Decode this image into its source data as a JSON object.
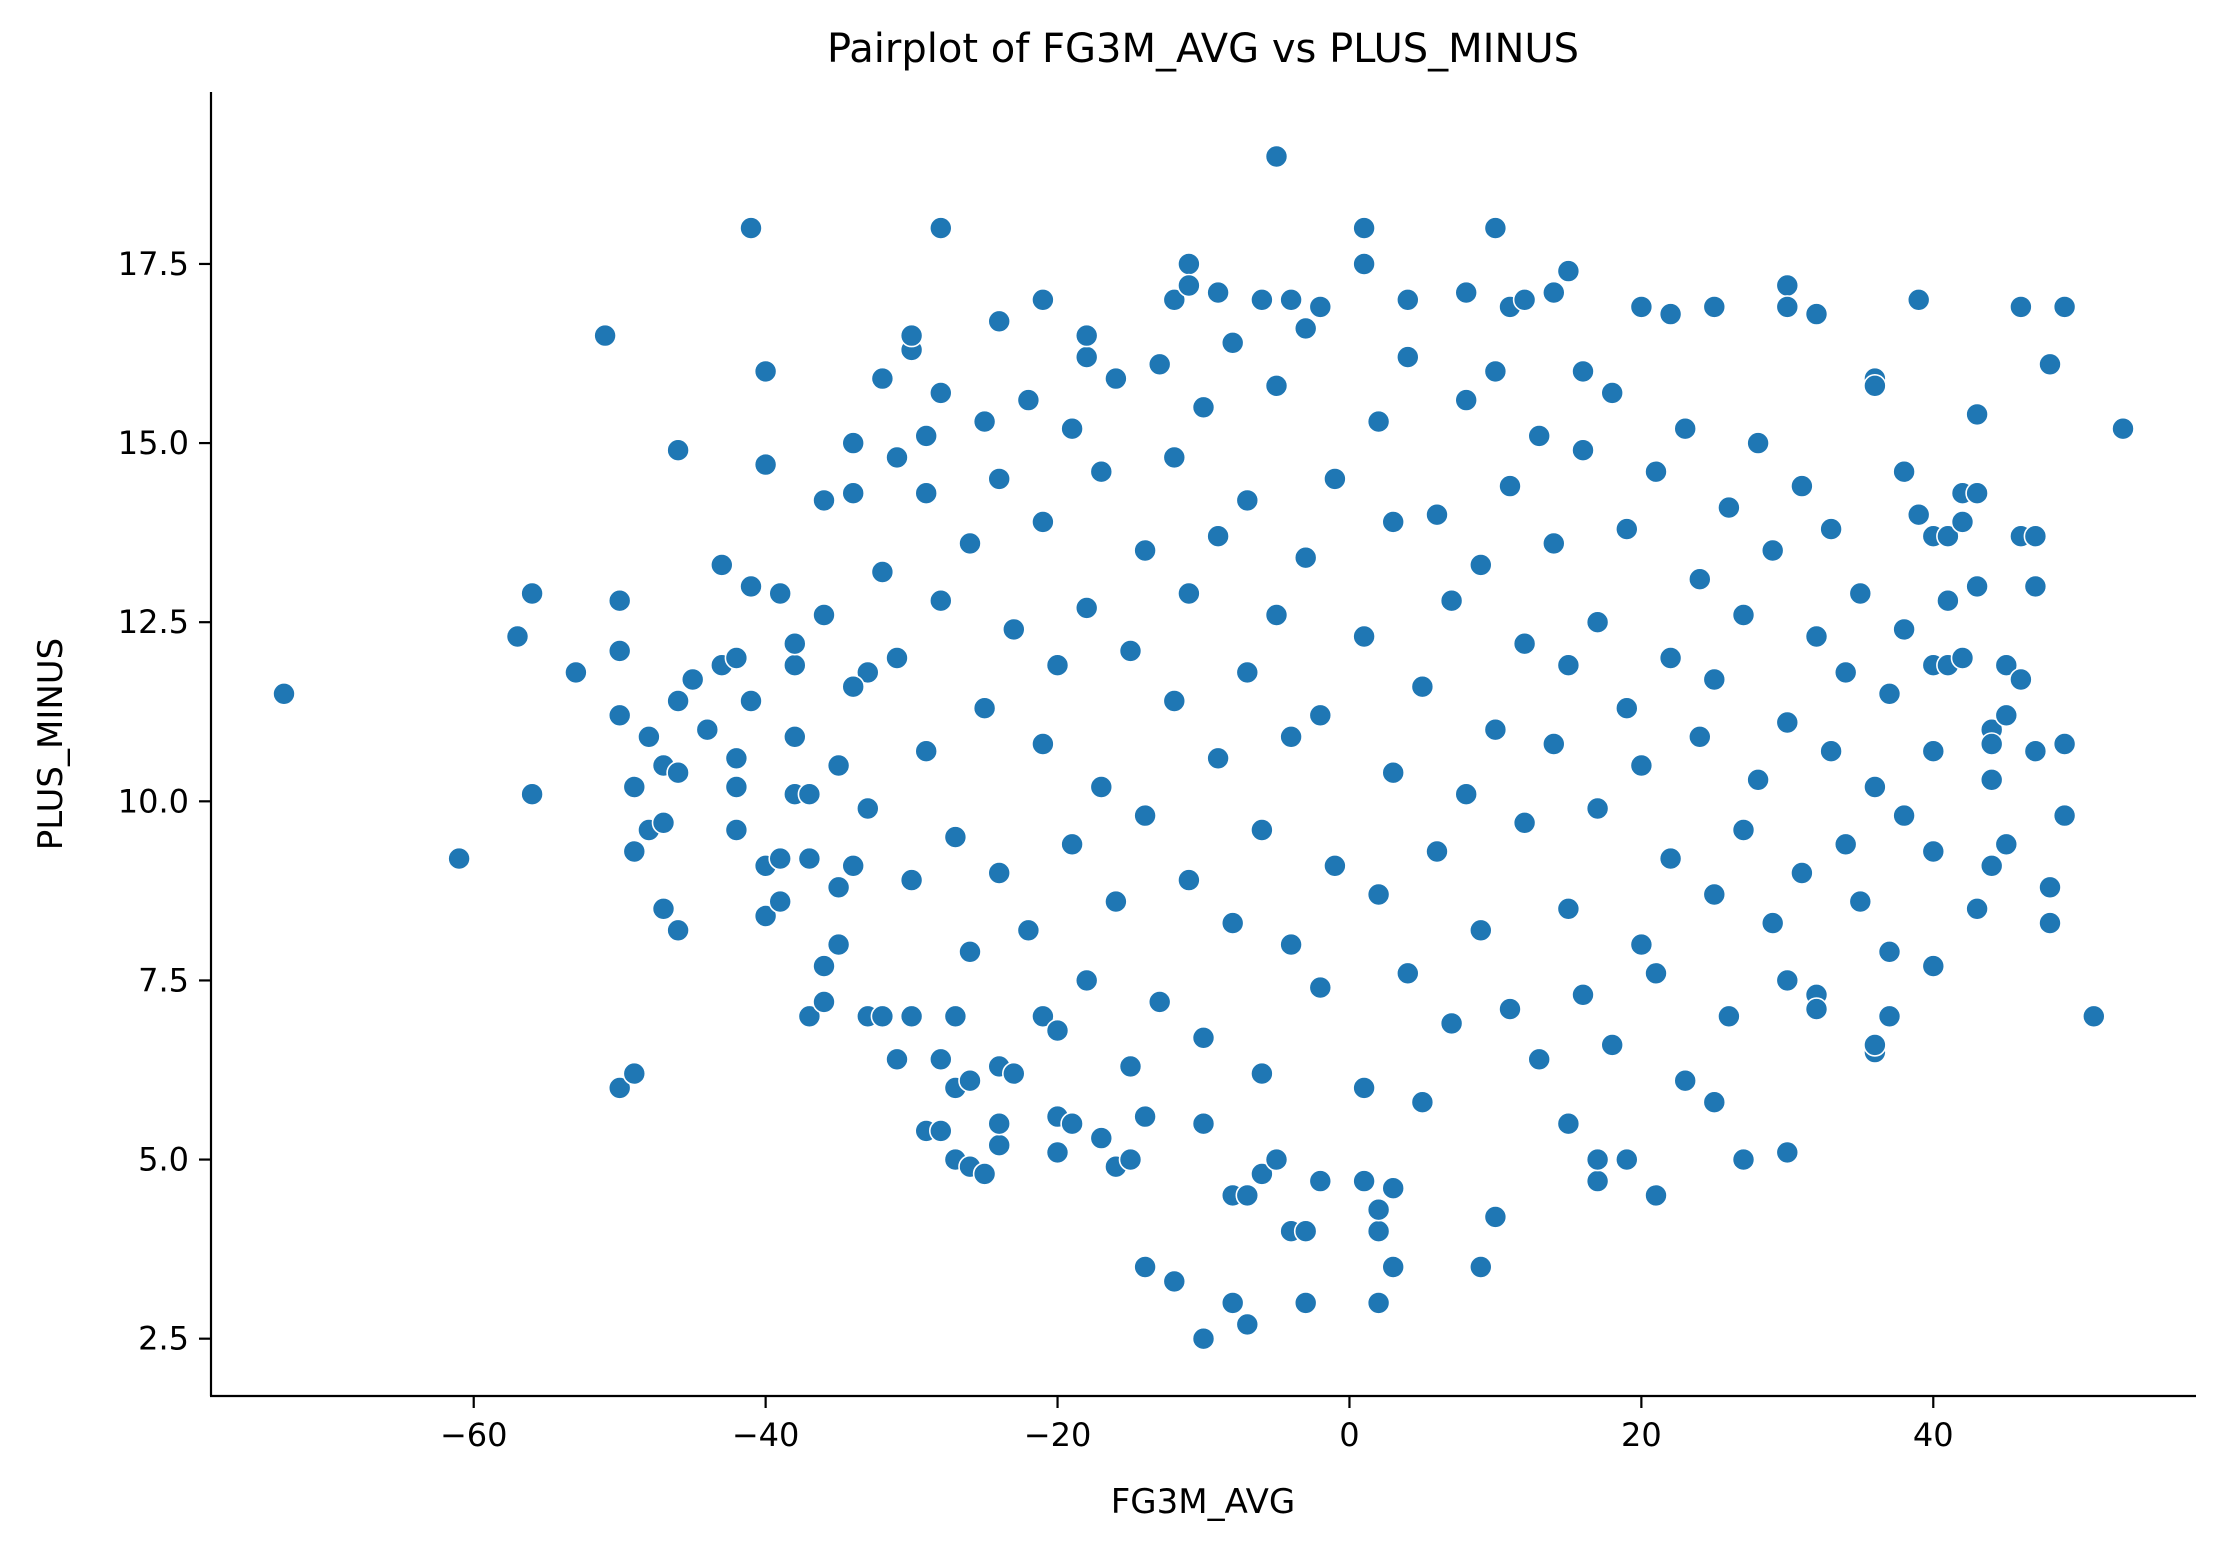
{
  "chart_data": {
    "type": "scatter",
    "title": "Pairplot of FG3M_AVG vs PLUS_MINUS",
    "xlabel": "FG3M_AVG",
    "ylabel": "PLUS_MINUS",
    "xlim": [
      -78,
      58
    ],
    "ylim": [
      1.7,
      19.9
    ],
    "xticks": [
      -60,
      -40,
      -20,
      0,
      20,
      40
    ],
    "xtick_labels": [
      "−60",
      "−40",
      "−20",
      "0",
      "20",
      "40"
    ],
    "yticks": [
      2.5,
      5.0,
      7.5,
      10.0,
      12.5,
      15.0,
      17.5
    ],
    "ytick_labels": [
      "2.5",
      "5.0",
      "7.5",
      "10.0",
      "12.5",
      "15.0",
      "17.5"
    ],
    "grid": false,
    "colors": {
      "marker": "#1f77b4",
      "marker_edge": "#ffffff"
    },
    "series": [
      {
        "points": [
          [
            -73,
            11.5
          ],
          [
            -61,
            9.2
          ],
          [
            -57,
            12.3
          ],
          [
            -56,
            12.9
          ],
          [
            -56,
            10.1
          ],
          [
            -53,
            11.8
          ],
          [
            -51,
            16.5
          ],
          [
            -50,
            12.8
          ],
          [
            -50,
            12.1
          ],
          [
            -50,
            11.2
          ],
          [
            -50,
            6.0
          ],
          [
            -49,
            6.2
          ],
          [
            -49,
            9.3
          ],
          [
            -49,
            10.2
          ],
          [
            -48,
            10.9
          ],
          [
            -48,
            9.6
          ],
          [
            -47,
            10.5
          ],
          [
            -47,
            9.7
          ],
          [
            -47,
            8.5
          ],
          [
            -46,
            8.2
          ],
          [
            -46,
            10.4
          ],
          [
            -46,
            11.4
          ],
          [
            -46,
            14.9
          ],
          [
            -45,
            11.7
          ],
          [
            -44,
            11.0
          ],
          [
            -43,
            13.3
          ],
          [
            -43,
            11.9
          ],
          [
            -42,
            12.0
          ],
          [
            -42,
            10.6
          ],
          [
            -42,
            10.2
          ],
          [
            -42,
            9.6
          ],
          [
            -41,
            18.0
          ],
          [
            -41,
            11.4
          ],
          [
            -41,
            13.0
          ],
          [
            -40,
            16.0
          ],
          [
            -40,
            14.7
          ],
          [
            -40,
            8.4
          ],
          [
            -40,
            9.1
          ],
          [
            -39,
            9.2
          ],
          [
            -39,
            8.6
          ],
          [
            -39,
            12.9
          ],
          [
            -38,
            11.9
          ],
          [
            -38,
            10.9
          ],
          [
            -38,
            10.1
          ],
          [
            -37,
            7.0
          ],
          [
            -37,
            9.2
          ],
          [
            -37,
            10.1
          ],
          [
            -36,
            7.2
          ],
          [
            -36,
            7.7
          ],
          [
            -36,
            14.2
          ],
          [
            -35,
            8.0
          ],
          [
            -35,
            8.8
          ],
          [
            -34,
            14.3
          ],
          [
            -34,
            15.0
          ],
          [
            -34,
            9.1
          ],
          [
            -33,
            7.0
          ],
          [
            -33,
            11.8
          ],
          [
            -32,
            7.0
          ],
          [
            -32,
            15.9
          ],
          [
            -31,
            6.4
          ],
          [
            -31,
            14.8
          ],
          [
            -30,
            16.3
          ],
          [
            -30,
            16.5
          ],
          [
            -30,
            7.0
          ],
          [
            -29,
            5.4
          ],
          [
            -29,
            15.1
          ],
          [
            -28,
            18.0
          ],
          [
            -28,
            15.7
          ],
          [
            -28,
            5.4
          ],
          [
            -28,
            6.4
          ],
          [
            -27,
            7.0
          ],
          [
            -27,
            5.0
          ],
          [
            -27,
            6.0
          ],
          [
            -26,
            4.9
          ],
          [
            -26,
            6.1
          ],
          [
            -25,
            4.8
          ],
          [
            -25,
            15.3
          ],
          [
            -24,
            16.7
          ],
          [
            -24,
            5.2
          ],
          [
            -24,
            5.5
          ],
          [
            -24,
            6.3
          ],
          [
            -23,
            6.2
          ],
          [
            -21,
            17.0
          ],
          [
            -21,
            7.0
          ],
          [
            -20,
            5.1
          ],
          [
            -20,
            5.6
          ],
          [
            -19,
            5.5
          ],
          [
            -18,
            16.2
          ],
          [
            -18,
            16.5
          ],
          [
            -17,
            5.3
          ],
          [
            -16,
            4.9
          ],
          [
            -15,
            5.0
          ],
          [
            -14,
            3.5
          ],
          [
            -14,
            5.6
          ],
          [
            -12,
            3.3
          ],
          [
            -12,
            17.0
          ],
          [
            -11,
            17.5
          ],
          [
            -11,
            17.2
          ],
          [
            -10,
            2.5
          ],
          [
            -10,
            5.5
          ],
          [
            -9,
            17.1
          ],
          [
            -8,
            3.0
          ],
          [
            -8,
            4.5
          ],
          [
            -7,
            2.7
          ],
          [
            -7,
            4.5
          ],
          [
            -6,
            4.8
          ],
          [
            -6,
            17.0
          ],
          [
            -5,
            19.0
          ],
          [
            -5,
            5.0
          ],
          [
            -4,
            4.0
          ],
          [
            -4,
            17.0
          ],
          [
            -3,
            4.0
          ],
          [
            -3,
            3.0
          ],
          [
            -2,
            4.7
          ],
          [
            -2,
            16.9
          ],
          [
            1,
            18.0
          ],
          [
            1,
            17.5
          ],
          [
            1,
            4.7
          ],
          [
            2,
            4.0
          ],
          [
            2,
            4.3
          ],
          [
            2,
            3.0
          ],
          [
            3,
            3.5
          ],
          [
            3,
            4.6
          ],
          [
            4,
            17.0
          ],
          [
            8,
            17.1
          ],
          [
            9,
            3.5
          ],
          [
            10,
            4.2
          ],
          [
            10,
            18.0
          ],
          [
            11,
            16.9
          ],
          [
            12,
            17.0
          ],
          [
            14,
            17.1
          ],
          [
            15,
            17.4
          ],
          [
            15,
            5.5
          ],
          [
            16,
            16.0
          ],
          [
            17,
            4.7
          ],
          [
            17,
            5.0
          ],
          [
            19,
            5.0
          ],
          [
            20,
            16.9
          ],
          [
            21,
            4.5
          ],
          [
            22,
            16.8
          ],
          [
            25,
            16.9
          ],
          [
            25,
            5.8
          ],
          [
            27,
            5.0
          ],
          [
            30,
            17.2
          ],
          [
            30,
            16.9
          ],
          [
            30,
            5.1
          ],
          [
            32,
            16.8
          ],
          [
            32,
            7.3
          ],
          [
            32,
            7.1
          ],
          [
            36,
            15.9
          ],
          [
            36,
            15.8
          ],
          [
            36,
            6.5
          ],
          [
            36,
            6.6
          ],
          [
            37,
            7.0
          ],
          [
            37,
            7.9
          ],
          [
            38,
            14.6
          ],
          [
            39,
            17.0
          ],
          [
            39,
            14.0
          ],
          [
            40,
            13.7
          ],
          [
            40,
            11.9
          ],
          [
            40,
            10.7
          ],
          [
            40,
            9.3
          ],
          [
            40,
            7.7
          ],
          [
            41,
            13.7
          ],
          [
            41,
            12.8
          ],
          [
            41,
            11.9
          ],
          [
            42,
            14.3
          ],
          [
            42,
            13.9
          ],
          [
            42,
            12.0
          ],
          [
            43,
            15.4
          ],
          [
            43,
            14.3
          ],
          [
            43,
            13.0
          ],
          [
            43,
            8.5
          ],
          [
            44,
            11.0
          ],
          [
            44,
            10.8
          ],
          [
            44,
            10.3
          ],
          [
            44,
            9.1
          ],
          [
            45,
            11.9
          ],
          [
            45,
            11.2
          ],
          [
            45,
            9.4
          ],
          [
            46,
            16.9
          ],
          [
            46,
            13.7
          ],
          [
            46,
            11.7
          ],
          [
            47,
            13.7
          ],
          [
            47,
            13.0
          ],
          [
            47,
            10.7
          ],
          [
            48,
            16.1
          ],
          [
            48,
            8.8
          ],
          [
            48,
            8.3
          ],
          [
            49,
            16.9
          ],
          [
            49,
            10.8
          ],
          [
            49,
            9.8
          ],
          [
            51,
            7.0
          ],
          [
            53,
            15.2
          ],
          [
            -38,
            12.2
          ],
          [
            -36,
            12.6
          ],
          [
            -35,
            10.5
          ],
          [
            -34,
            11.6
          ],
          [
            -33,
            9.9
          ],
          [
            -32,
            13.2
          ],
          [
            -31,
            12.0
          ],
          [
            -30,
            8.9
          ],
          [
            -29,
            14.3
          ],
          [
            -29,
            10.7
          ],
          [
            -28,
            12.8
          ],
          [
            -27,
            9.5
          ],
          [
            -26,
            13.6
          ],
          [
            -26,
            7.9
          ],
          [
            -25,
            11.3
          ],
          [
            -24,
            14.5
          ],
          [
            -24,
            9.0
          ],
          [
            -23,
            12.4
          ],
          [
            -22,
            15.6
          ],
          [
            -22,
            8.2
          ],
          [
            -21,
            10.8
          ],
          [
            -21,
            13.9
          ],
          [
            -20,
            6.8
          ],
          [
            -20,
            11.9
          ],
          [
            -19,
            15.2
          ],
          [
            -19,
            9.4
          ],
          [
            -18,
            12.7
          ],
          [
            -18,
            7.5
          ],
          [
            -17,
            14.6
          ],
          [
            -17,
            10.2
          ],
          [
            -16,
            15.9
          ],
          [
            -16,
            8.6
          ],
          [
            -15,
            12.1
          ],
          [
            -15,
            6.3
          ],
          [
            -14,
            13.5
          ],
          [
            -14,
            9.8
          ],
          [
            -13,
            16.1
          ],
          [
            -13,
            7.2
          ],
          [
            -12,
            11.4
          ],
          [
            -12,
            14.8
          ],
          [
            -11,
            8.9
          ],
          [
            -11,
            12.9
          ],
          [
            -10,
            15.5
          ],
          [
            -10,
            6.7
          ],
          [
            -9,
            10.6
          ],
          [
            -9,
            13.7
          ],
          [
            -8,
            16.4
          ],
          [
            -8,
            8.3
          ],
          [
            -7,
            11.8
          ],
          [
            -7,
            14.2
          ],
          [
            -6,
            9.6
          ],
          [
            -6,
            6.2
          ],
          [
            -5,
            12.6
          ],
          [
            -5,
            15.8
          ],
          [
            -4,
            8.0
          ],
          [
            -4,
            10.9
          ],
          [
            -3,
            13.4
          ],
          [
            -3,
            16.6
          ],
          [
            -2,
            7.4
          ],
          [
            -2,
            11.2
          ],
          [
            -1,
            14.5
          ],
          [
            -1,
            9.1
          ],
          [
            1,
            12.3
          ],
          [
            1,
            6.0
          ],
          [
            2,
            15.3
          ],
          [
            2,
            8.7
          ],
          [
            3,
            10.4
          ],
          [
            3,
            13.9
          ],
          [
            4,
            7.6
          ],
          [
            4,
            16.2
          ],
          [
            5,
            11.6
          ],
          [
            5,
            5.8
          ],
          [
            6,
            14.0
          ],
          [
            6,
            9.3
          ],
          [
            7,
            12.8
          ],
          [
            7,
            6.9
          ],
          [
            8,
            15.6
          ],
          [
            8,
            10.1
          ],
          [
            9,
            8.2
          ],
          [
            9,
            13.3
          ],
          [
            10,
            11.0
          ],
          [
            10,
            16.0
          ],
          [
            11,
            7.1
          ],
          [
            11,
            14.4
          ],
          [
            12,
            9.7
          ],
          [
            12,
            12.2
          ],
          [
            13,
            15.1
          ],
          [
            13,
            6.4
          ],
          [
            14,
            10.8
          ],
          [
            14,
            13.6
          ],
          [
            15,
            8.5
          ],
          [
            15,
            11.9
          ],
          [
            16,
            14.9
          ],
          [
            16,
            7.3
          ],
          [
            17,
            12.5
          ],
          [
            17,
            9.9
          ],
          [
            18,
            15.7
          ],
          [
            18,
            6.6
          ],
          [
            19,
            11.3
          ],
          [
            19,
            13.8
          ],
          [
            20,
            8.0
          ],
          [
            20,
            10.5
          ],
          [
            21,
            14.6
          ],
          [
            21,
            7.6
          ],
          [
            22,
            12.0
          ],
          [
            22,
            9.2
          ],
          [
            23,
            15.2
          ],
          [
            23,
            6.1
          ],
          [
            24,
            10.9
          ],
          [
            24,
            13.1
          ],
          [
            25,
            8.7
          ],
          [
            25,
            11.7
          ],
          [
            26,
            14.1
          ],
          [
            26,
            7.0
          ],
          [
            27,
            12.6
          ],
          [
            27,
            9.6
          ],
          [
            28,
            15.0
          ],
          [
            28,
            10.3
          ],
          [
            29,
            8.3
          ],
          [
            29,
            13.5
          ],
          [
            30,
            11.1
          ],
          [
            30,
            7.5
          ],
          [
            31,
            14.4
          ],
          [
            31,
            9.0
          ],
          [
            32,
            12.3
          ],
          [
            33,
            10.7
          ],
          [
            33,
            13.8
          ],
          [
            34,
            9.4
          ],
          [
            34,
            11.8
          ],
          [
            35,
            12.9
          ],
          [
            35,
            8.6
          ],
          [
            36,
            10.2
          ],
          [
            37,
            11.5
          ],
          [
            38,
            9.8
          ],
          [
            38,
            12.4
          ]
        ]
      }
    ]
  }
}
